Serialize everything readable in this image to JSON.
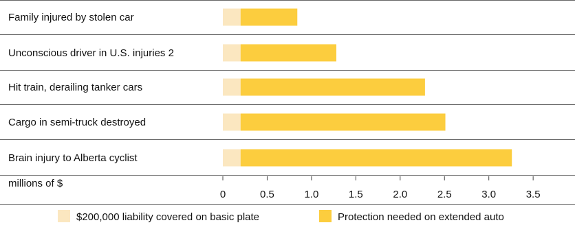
{
  "chart_data": {
    "type": "bar",
    "orientation": "horizontal",
    "stacked": true,
    "categories": [
      "Family injured by stolen car",
      "Unconscious driver in U.S. injuries 2",
      "Hit train, derailing tanker cars",
      "Cargo in semi-truck destroyed",
      "Brain injury to Alberta cyclist"
    ],
    "series": [
      {
        "name": "$200,000 liability covered on basic plate",
        "color": "#fbe7c0",
        "values": [
          0.2,
          0.2,
          0.2,
          0.2,
          0.2
        ]
      },
      {
        "name": "Protection needed on extended auto",
        "color": "#fccd3e",
        "values": [
          0.64,
          1.08,
          2.08,
          2.31,
          3.06
        ]
      }
    ],
    "xlabel": "millions of $",
    "xlim": [
      0,
      3.8
    ],
    "xticks": [
      "0",
      "0.5",
      "1.0",
      "1.5",
      "2.0",
      "2.5",
      "3.0",
      "3.5"
    ],
    "xtick_values": [
      0,
      0.5,
      1.0,
      1.5,
      2.0,
      2.5,
      3.0,
      3.5
    ],
    "legend_position": "bottom",
    "grid": false
  }
}
